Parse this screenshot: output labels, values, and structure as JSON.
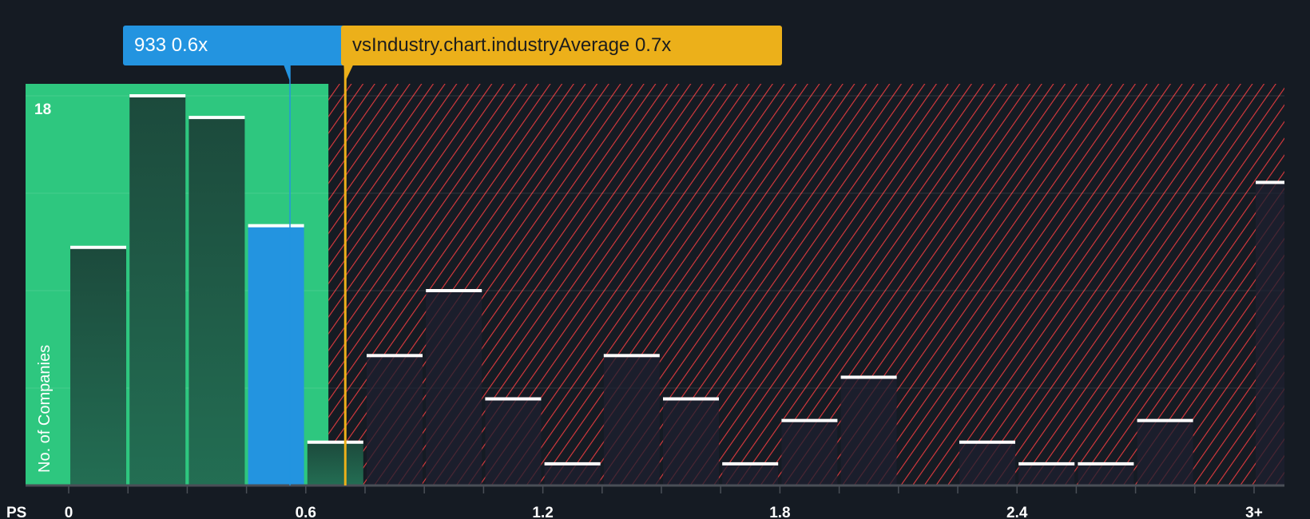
{
  "chart_data": {
    "type": "bar",
    "title": "",
    "xlabel": "PS",
    "ylabel": "No. of Companies",
    "bin_width": 0.15,
    "bins_start": [
      0,
      0.15,
      0.3,
      0.45,
      0.6,
      0.75,
      0.9,
      1.05,
      1.2,
      1.35,
      1.5,
      1.65,
      1.8,
      1.95,
      2.1,
      2.25,
      2.4,
      2.55,
      2.7,
      2.85,
      3.0
    ],
    "values": [
      11,
      18,
      17,
      12,
      2,
      6,
      9,
      4,
      1,
      6,
      4,
      1,
      3,
      5,
      0,
      2,
      1,
      1,
      3,
      0,
      14
    ],
    "highlight_bin_index": 3,
    "x_ticks": [
      {
        "value": 0,
        "label": "0"
      },
      {
        "value": 0.6,
        "label": "0.6"
      },
      {
        "value": 1.2,
        "label": "1.2"
      },
      {
        "value": 1.8,
        "label": "1.8"
      },
      {
        "value": 2.4,
        "label": "2.4"
      },
      {
        "value": 3.0,
        "label": "3+"
      }
    ],
    "y_tick_label": "18",
    "y_gridlines": [
      4.5,
      9,
      13.5,
      18
    ],
    "ylim": [
      0,
      18.6
    ],
    "company_value": 0.56,
    "industry_average": 0.7,
    "fair_zone_end": 0.7
  },
  "callouts": {
    "company": "933 0.6x",
    "industry": "vsIndustry.chart.industryAverage 0.7x"
  },
  "colors": {
    "good": "#2ec77f",
    "bad": "#e03a3e",
    "highlight": "#2394e0",
    "average": "#ecb01a",
    "bg": "#151b23"
  }
}
